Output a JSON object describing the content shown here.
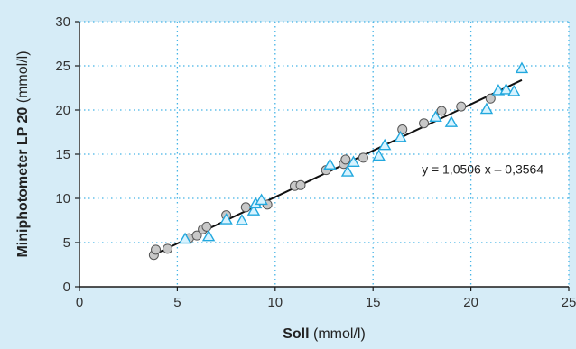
{
  "colors": {
    "background": "#d6ecf7",
    "plot_background": "#ffffff",
    "grid": "#46b4e6",
    "axis": "#1a1a1a",
    "circle_fill": "#c8c8c8",
    "circle_stroke": "#555555",
    "triangle_fill": "#d7f3ff",
    "triangle_stroke": "#22a8de",
    "regression_line": "#111111"
  },
  "chart_data": {
    "type": "scatter",
    "title": "",
    "xlabel": {
      "bold": "Soll",
      "unit": " (mmol/l)"
    },
    "ylabel": {
      "bold": "Miniphotometer LP 20",
      "unit": " (mmol/l)"
    },
    "xlim": [
      0,
      25
    ],
    "ylim": [
      0,
      30
    ],
    "x_ticks": [
      0,
      5,
      10,
      15,
      20,
      25
    ],
    "y_ticks": [
      0,
      5,
      10,
      15,
      20,
      25,
      30
    ],
    "x_tick_labels": [
      "0",
      "5",
      "10",
      "15",
      "20",
      "25"
    ],
    "y_tick_labels": [
      "0",
      "5",
      "10",
      "15",
      "20",
      "25",
      "30"
    ],
    "grid": true,
    "grid_style": "dotted",
    "legend": "none",
    "series": [
      {
        "marker": "circle",
        "points": [
          [
            3.8,
            3.6
          ],
          [
            3.9,
            4.2
          ],
          [
            4.5,
            4.3
          ],
          [
            5.6,
            5.5
          ],
          [
            6.0,
            5.8
          ],
          [
            6.3,
            6.5
          ],
          [
            6.5,
            6.8
          ],
          [
            7.5,
            8.1
          ],
          [
            8.5,
            9.0
          ],
          [
            9.6,
            9.3
          ],
          [
            11.0,
            11.4
          ],
          [
            11.3,
            11.5
          ],
          [
            12.6,
            13.2
          ],
          [
            13.5,
            13.9
          ],
          [
            13.6,
            14.4
          ],
          [
            14.5,
            14.6
          ],
          [
            16.5,
            17.8
          ],
          [
            17.6,
            18.5
          ],
          [
            18.5,
            19.9
          ],
          [
            19.5,
            20.4
          ],
          [
            21.0,
            21.3
          ]
        ]
      },
      {
        "marker": "triangle",
        "points": [
          [
            5.4,
            5.4
          ],
          [
            6.6,
            5.7
          ],
          [
            7.5,
            7.6
          ],
          [
            8.3,
            7.5
          ],
          [
            8.9,
            8.6
          ],
          [
            9.0,
            9.4
          ],
          [
            9.3,
            9.8
          ],
          [
            12.8,
            13.8
          ],
          [
            13.7,
            13.0
          ],
          [
            14.0,
            14.1
          ],
          [
            15.3,
            14.8
          ],
          [
            15.6,
            16.0
          ],
          [
            16.4,
            16.9
          ],
          [
            18.2,
            19.2
          ],
          [
            19.0,
            18.6
          ],
          [
            20.8,
            20.1
          ],
          [
            21.4,
            22.2
          ],
          [
            21.8,
            22.3
          ],
          [
            22.2,
            22.1
          ],
          [
            22.6,
            24.7
          ]
        ]
      }
    ],
    "regression": {
      "slope": 1.0506,
      "intercept": -0.3564,
      "x_range": [
        3.8,
        22.6
      ],
      "label": "y = 1,0506 x – 0,3564"
    }
  }
}
